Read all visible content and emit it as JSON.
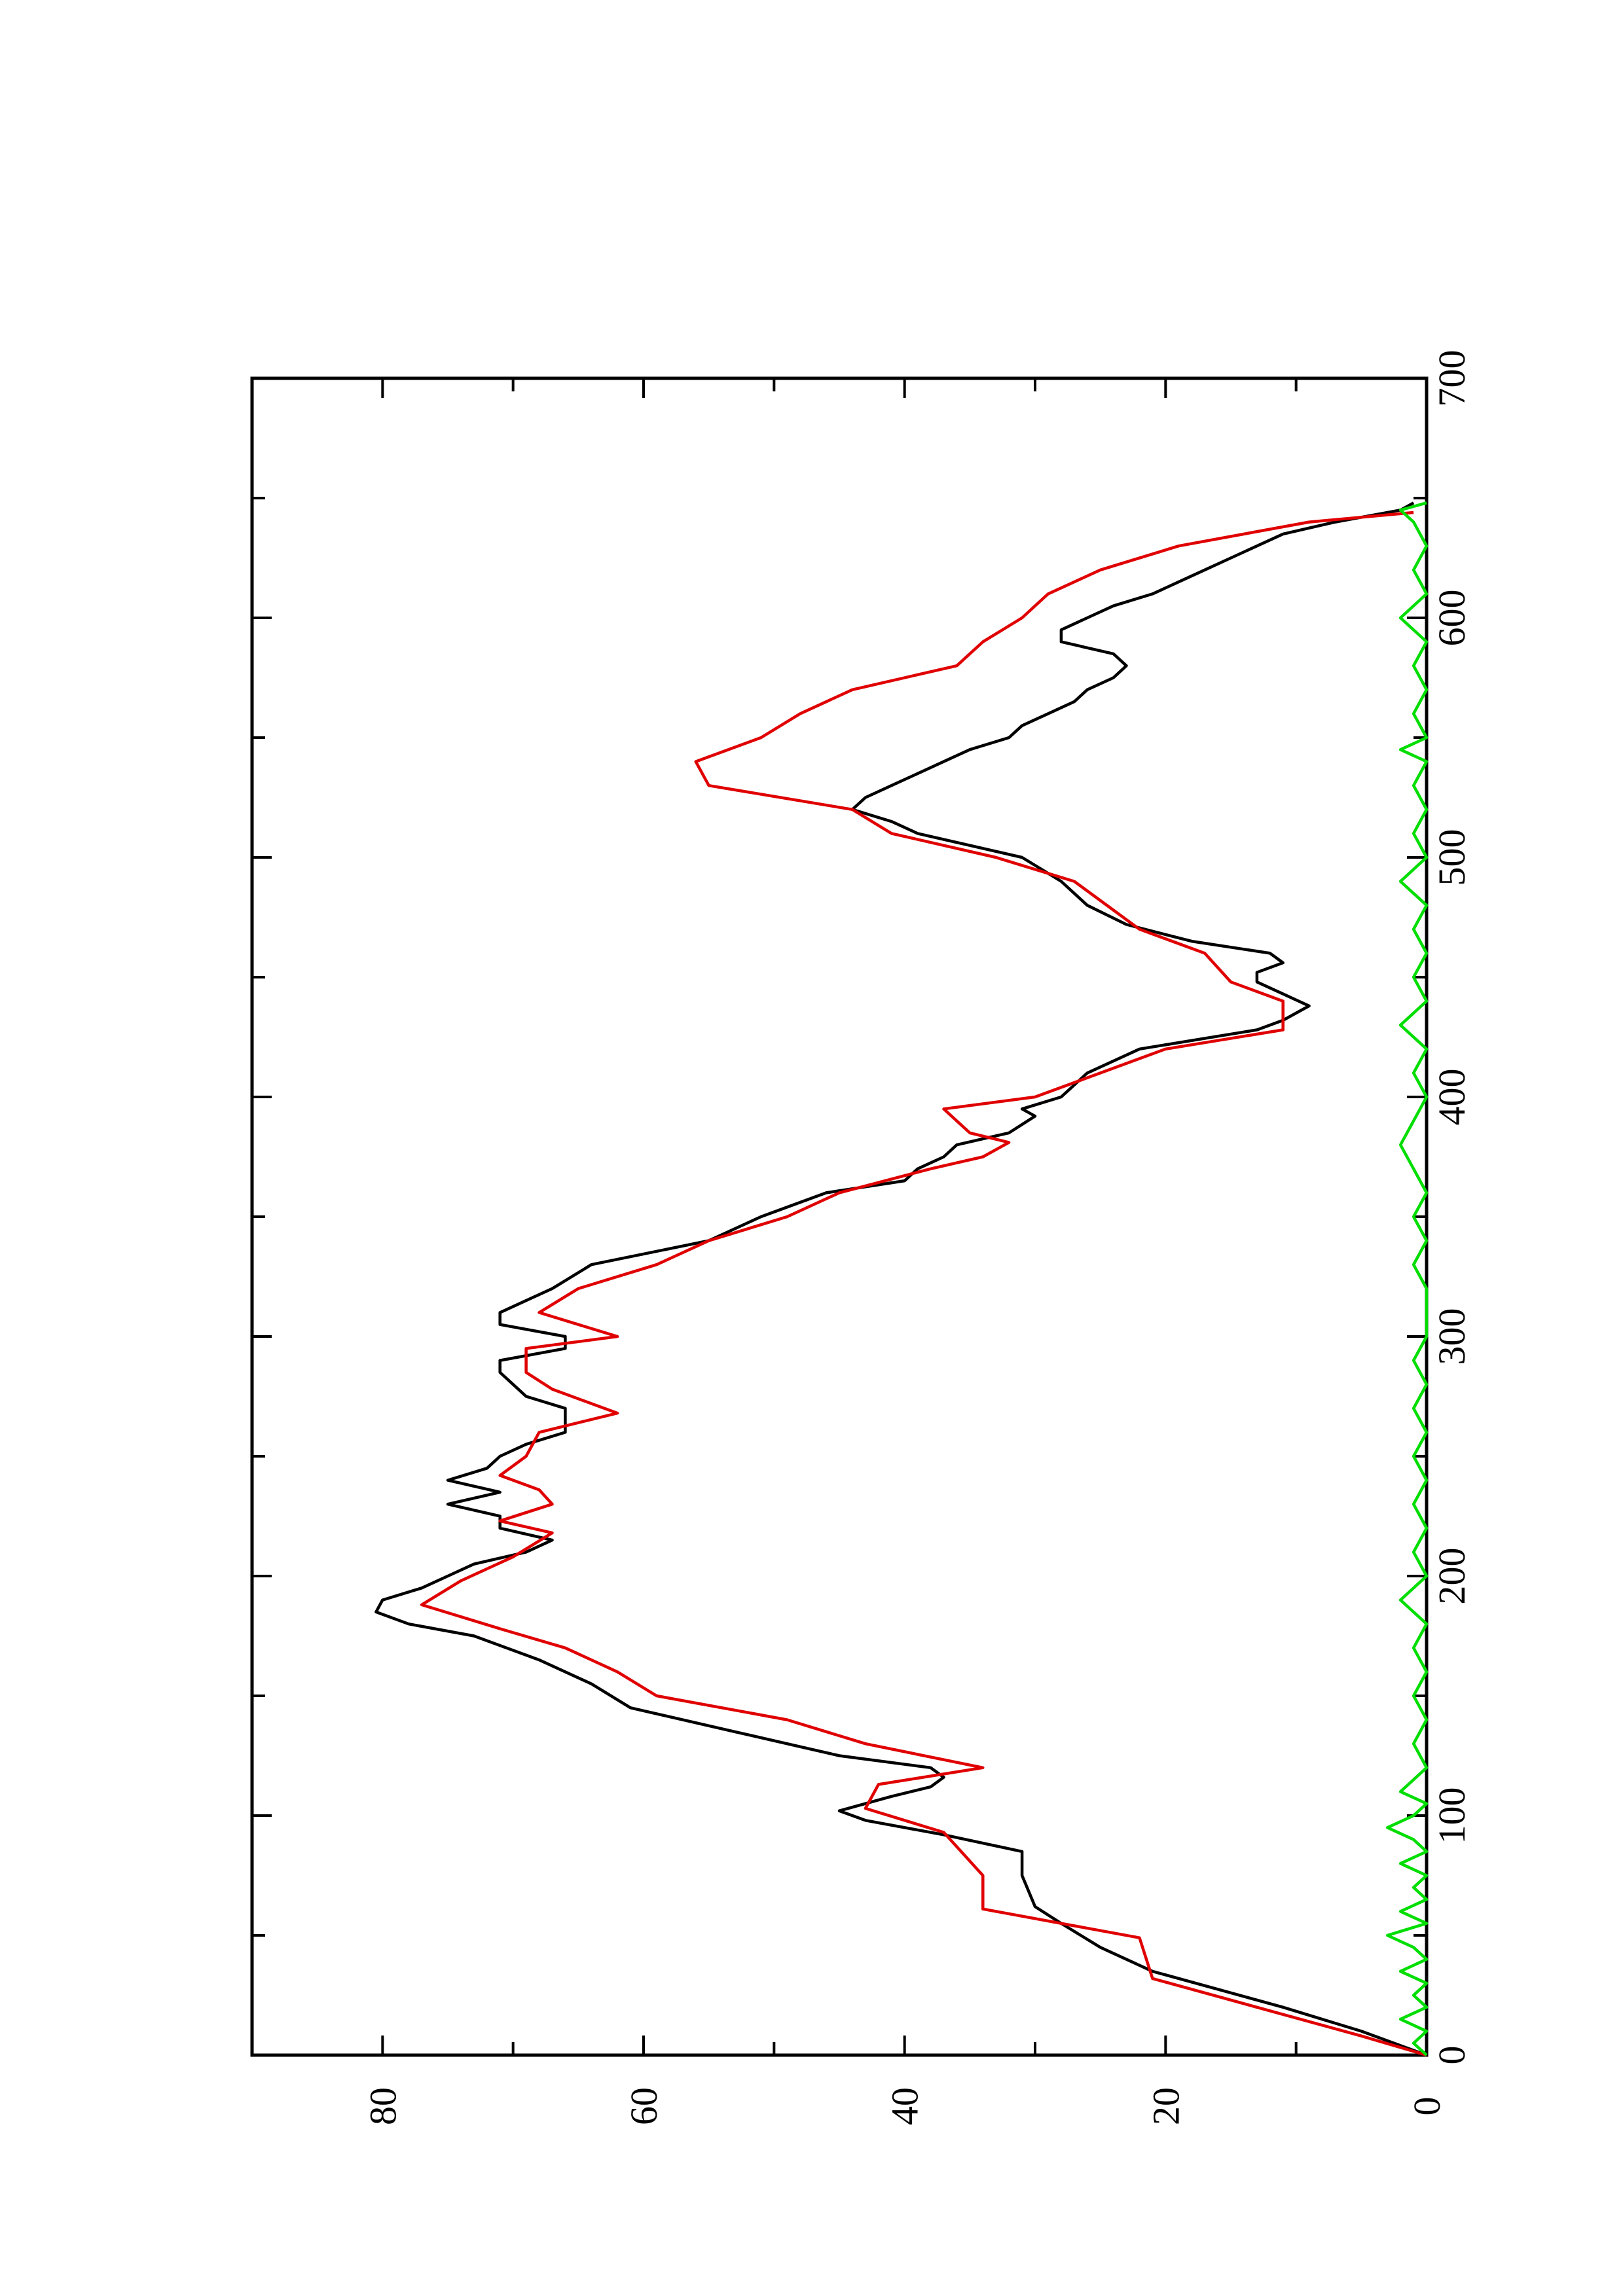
{
  "chart_data": {
    "type": "line",
    "orientation": "rotated 90 degrees counter-clockwise",
    "title": "",
    "xlabel": "",
    "ylabel": "",
    "xlim": [
      0,
      700
    ],
    "ylim": [
      0,
      90
    ],
    "x_ticks": [
      0,
      100,
      200,
      300,
      400,
      500,
      600,
      700
    ],
    "x_tick_labels": [
      "0",
      "100",
      "200",
      "300",
      "400",
      "500",
      "600",
      "700"
    ],
    "x_minor_ticks": [
      50,
      150,
      250,
      350,
      450,
      550,
      650
    ],
    "y_ticks": [
      0,
      20,
      40,
      60,
      80
    ],
    "y_tick_labels": [
      "0",
      "20",
      "40",
      "60",
      "80"
    ],
    "y_minor_ticks": [
      10,
      30,
      50,
      70
    ],
    "grid": false,
    "legend": "none",
    "series": [
      {
        "color": "#000000",
        "points": [
          [
            0,
            0
          ],
          [
            10,
            5
          ],
          [
            20,
            11
          ],
          [
            35,
            21
          ],
          [
            45,
            25
          ],
          [
            55,
            28
          ],
          [
            62,
            30
          ],
          [
            75,
            31
          ],
          [
            85,
            31
          ],
          [
            92,
            37
          ],
          [
            98,
            43
          ],
          [
            102,
            45
          ],
          [
            108,
            41
          ],
          [
            112,
            38
          ],
          [
            116,
            37
          ],
          [
            120,
            38
          ],
          [
            125,
            45
          ],
          [
            135,
            53
          ],
          [
            145,
            61
          ],
          [
            155,
            64
          ],
          [
            165,
            68
          ],
          [
            175,
            73
          ],
          [
            180,
            78
          ],
          [
            185,
            80.5
          ],
          [
            190,
            80
          ],
          [
            195,
            77
          ],
          [
            200,
            75
          ],
          [
            205,
            73
          ],
          [
            210,
            69
          ],
          [
            215,
            67
          ],
          [
            220,
            71
          ],
          [
            225,
            71
          ],
          [
            230,
            75
          ],
          [
            235,
            71
          ],
          [
            240,
            75
          ],
          [
            245,
            72
          ],
          [
            250,
            71
          ],
          [
            255,
            69
          ],
          [
            260,
            66
          ],
          [
            265,
            66
          ],
          [
            270,
            66
          ],
          [
            275,
            69
          ],
          [
            280,
            70
          ],
          [
            285,
            71
          ],
          [
            290,
            71
          ],
          [
            295,
            66
          ],
          [
            300,
            66
          ],
          [
            305,
            71
          ],
          [
            310,
            71
          ],
          [
            315,
            69
          ],
          [
            320,
            67
          ],
          [
            330,
            64
          ],
          [
            340,
            55
          ],
          [
            350,
            51
          ],
          [
            360,
            46
          ],
          [
            365,
            40
          ],
          [
            370,
            39
          ],
          [
            375,
            37
          ],
          [
            380,
            36
          ],
          [
            385,
            32
          ],
          [
            392,
            30
          ],
          [
            395,
            31
          ],
          [
            400,
            28
          ],
          [
            410,
            26
          ],
          [
            420,
            22
          ],
          [
            428,
            13
          ],
          [
            432,
            11
          ],
          [
            438,
            9
          ],
          [
            443,
            11
          ],
          [
            448,
            13
          ],
          [
            452,
            13
          ],
          [
            456,
            11
          ],
          [
            460,
            12
          ],
          [
            465,
            18
          ],
          [
            472,
            23
          ],
          [
            480,
            26
          ],
          [
            490,
            28
          ],
          [
            500,
            31
          ],
          [
            505,
            35
          ],
          [
            510,
            39
          ],
          [
            515,
            41
          ],
          [
            520,
            44
          ],
          [
            525,
            43
          ],
          [
            530,
            41
          ],
          [
            535,
            39
          ],
          [
            540,
            37
          ],
          [
            545,
            35
          ],
          [
            550,
            32
          ],
          [
            555,
            31
          ],
          [
            560,
            29
          ],
          [
            565,
            27
          ],
          [
            570,
            26
          ],
          [
            575,
            24
          ],
          [
            580,
            23
          ],
          [
            585,
            24
          ],
          [
            590,
            28
          ],
          [
            595,
            28
          ],
          [
            600,
            26
          ],
          [
            605,
            24
          ],
          [
            610,
            21
          ],
          [
            615,
            19
          ],
          [
            620,
            17
          ],
          [
            625,
            15
          ],
          [
            630,
            13
          ],
          [
            635,
            11
          ],
          [
            640,
            7
          ],
          [
            645,
            2
          ],
          [
            648,
            1
          ]
        ]
      },
      {
        "color": "#e00000",
        "points": [
          [
            0,
            0
          ],
          [
            8,
            5
          ],
          [
            17,
            11
          ],
          [
            32,
            21
          ],
          [
            49,
            22
          ],
          [
            61,
            34
          ],
          [
            75,
            34
          ],
          [
            93,
            37
          ],
          [
            103,
            43
          ],
          [
            113,
            42
          ],
          [
            120,
            34
          ],
          [
            130,
            43
          ],
          [
            140,
            49
          ],
          [
            150,
            59
          ],
          [
            160,
            62
          ],
          [
            170,
            66
          ],
          [
            178,
            71
          ],
          [
            188,
            77
          ],
          [
            198,
            74
          ],
          [
            208,
            70
          ],
          [
            218,
            67
          ],
          [
            223,
            71
          ],
          [
            230,
            67
          ],
          [
            236,
            68
          ],
          [
            242,
            71
          ],
          [
            250,
            69
          ],
          [
            260,
            68
          ],
          [
            268,
            62
          ],
          [
            278,
            67
          ],
          [
            285,
            69
          ],
          [
            295,
            69
          ],
          [
            300,
            62
          ],
          [
            310,
            68
          ],
          [
            320,
            65
          ],
          [
            330,
            59
          ],
          [
            340,
            55
          ],
          [
            350,
            49
          ],
          [
            360,
            45
          ],
          [
            370,
            38
          ],
          [
            375,
            34
          ],
          [
            381,
            32
          ],
          [
            385,
            35
          ],
          [
            395,
            37
          ],
          [
            400,
            30
          ],
          [
            410,
            25
          ],
          [
            420,
            20
          ],
          [
            428,
            11
          ],
          [
            440,
            11
          ],
          [
            448,
            15
          ],
          [
            460,
            17
          ],
          [
            470,
            22
          ],
          [
            478,
            24
          ],
          [
            490,
            27
          ],
          [
            500,
            33
          ],
          [
            510,
            41
          ],
          [
            520,
            44
          ],
          [
            530,
            55
          ],
          [
            540,
            56
          ],
          [
            550,
            51
          ],
          [
            560,
            48
          ],
          [
            570,
            44
          ],
          [
            580,
            36
          ],
          [
            590,
            34
          ],
          [
            600,
            31
          ],
          [
            610,
            29
          ],
          [
            620,
            25
          ],
          [
            630,
            19
          ],
          [
            640,
            9
          ],
          [
            644,
            1
          ]
        ]
      },
      {
        "color": "#00dd00",
        "points": [
          [
            0,
            0
          ],
          [
            5,
            1
          ],
          [
            10,
            0
          ],
          [
            15,
            2
          ],
          [
            20,
            0
          ],
          [
            25,
            1
          ],
          [
            30,
            0
          ],
          [
            35,
            2
          ],
          [
            40,
            0
          ],
          [
            45,
            1
          ],
          [
            50,
            3
          ],
          [
            55,
            0
          ],
          [
            60,
            2
          ],
          [
            65,
            0
          ],
          [
            70,
            1
          ],
          [
            75,
            0
          ],
          [
            80,
            2
          ],
          [
            85,
            0
          ],
          [
            90,
            1
          ],
          [
            95,
            3
          ],
          [
            100,
            1
          ],
          [
            105,
            0
          ],
          [
            110,
            2
          ],
          [
            115,
            1
          ],
          [
            120,
            0
          ],
          [
            130,
            1
          ],
          [
            140,
            0
          ],
          [
            150,
            1
          ],
          [
            160,
            0
          ],
          [
            170,
            1
          ],
          [
            180,
            0
          ],
          [
            190,
            2
          ],
          [
            200,
            0
          ],
          [
            210,
            1
          ],
          [
            220,
            0
          ],
          [
            230,
            1
          ],
          [
            240,
            0
          ],
          [
            250,
            1
          ],
          [
            260,
            0
          ],
          [
            270,
            1
          ],
          [
            280,
            0
          ],
          [
            290,
            1
          ],
          [
            300,
            0
          ],
          [
            310,
            0
          ],
          [
            320,
            0
          ],
          [
            330,
            1
          ],
          [
            340,
            0
          ],
          [
            350,
            1
          ],
          [
            360,
            0
          ],
          [
            370,
            1
          ],
          [
            380,
            2
          ],
          [
            390,
            1
          ],
          [
            400,
            0
          ],
          [
            410,
            1
          ],
          [
            420,
            0
          ],
          [
            430,
            2
          ],
          [
            440,
            0
          ],
          [
            450,
            1
          ],
          [
            460,
            0
          ],
          [
            470,
            1
          ],
          [
            480,
            0
          ],
          [
            490,
            2
          ],
          [
            500,
            0
          ],
          [
            510,
            1
          ],
          [
            520,
            0
          ],
          [
            530,
            1
          ],
          [
            540,
            0
          ],
          [
            545,
            2
          ],
          [
            550,
            0
          ],
          [
            560,
            1
          ],
          [
            570,
            0
          ],
          [
            580,
            1
          ],
          [
            590,
            0
          ],
          [
            600,
            2
          ],
          [
            610,
            0
          ],
          [
            620,
            1
          ],
          [
            630,
            0
          ],
          [
            640,
            1
          ],
          [
            645,
            2
          ],
          [
            648,
            0
          ]
        ]
      }
    ]
  }
}
